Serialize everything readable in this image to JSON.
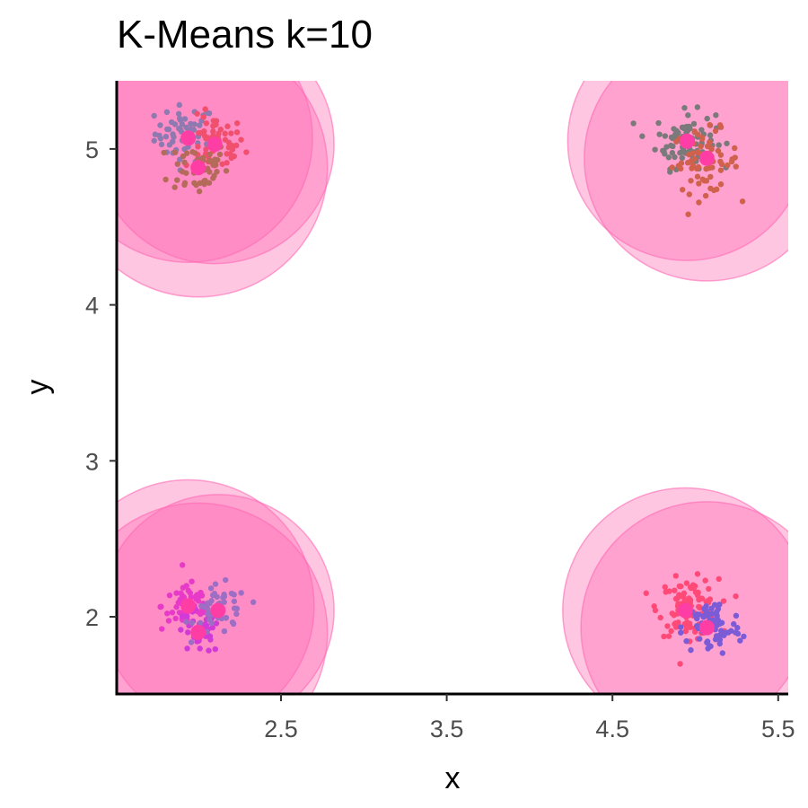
{
  "chart_data": {
    "type": "scatter",
    "title": "K-Means k=10",
    "xlabel": "x",
    "ylabel": "y",
    "xlim": [
      1.5,
      5.55
    ],
    "ylim": [
      1.5,
      5.45
    ],
    "x_ticks": [
      2.5,
      3.5,
      4.5,
      5.5
    ],
    "x_tick_labels": [
      "2.5",
      "3.5",
      "4.5",
      "5.5"
    ],
    "y_ticks": [
      2,
      3,
      4,
      5
    ],
    "y_tick_labels": [
      "2",
      "3",
      "4",
      "5"
    ],
    "grid": false,
    "legend": "none",
    "circle_color": "#ff69b4",
    "center_color": "#ff3ea5",
    "clusters": [
      {
        "center": [
          1.94,
          5.07
        ],
        "radius": 0.75,
        "color": "#8e7ab0",
        "spread": 0.09,
        "count": 55,
        "point_center": [
          1.92,
          5.1
        ]
      },
      {
        "center": [
          2.1,
          5.03
        ],
        "radius": 0.72,
        "color": "#f0506e",
        "spread": 0.09,
        "count": 55,
        "point_center": [
          2.1,
          5.03
        ]
      },
      {
        "center": [
          2.0,
          4.88
        ],
        "radius": 0.78,
        "color": "#b56b5a",
        "spread": 0.09,
        "count": 50,
        "point_center": [
          2.0,
          4.88
        ]
      },
      {
        "center": [
          4.95,
          5.05
        ],
        "radius": 0.72,
        "color": "#7a7a7a",
        "spread": 0.09,
        "count": 90,
        "point_center": [
          4.94,
          5.06
        ]
      },
      {
        "center": [
          5.07,
          4.94
        ],
        "radius": 0.74,
        "color": "#d0614c",
        "spread": 0.1,
        "count": 70,
        "point_center": [
          5.06,
          4.92
        ]
      },
      {
        "center": [
          1.94,
          2.07
        ],
        "radius": 0.76,
        "color": "#e83ac8",
        "spread": 0.08,
        "count": 55,
        "point_center": [
          1.94,
          2.07
        ]
      },
      {
        "center": [
          2.0,
          1.9
        ],
        "radius": 0.78,
        "color": "#d13ad6",
        "spread": 0.07,
        "count": 40,
        "point_center": [
          2.0,
          1.9
        ]
      },
      {
        "center": [
          2.12,
          2.04
        ],
        "radius": 0.7,
        "color": "#9c6ec4",
        "spread": 0.08,
        "count": 50,
        "point_center": [
          2.14,
          2.04
        ]
      },
      {
        "center": [
          4.94,
          2.04
        ],
        "radius": 0.74,
        "color": "#ff4a78",
        "spread": 0.09,
        "count": 110,
        "point_center": [
          4.96,
          2.06
        ]
      },
      {
        "center": [
          5.07,
          1.93
        ],
        "radius": 0.76,
        "color": "#7b5cd6",
        "spread": 0.09,
        "count": 80,
        "point_center": [
          5.1,
          1.93
        ]
      }
    ]
  }
}
